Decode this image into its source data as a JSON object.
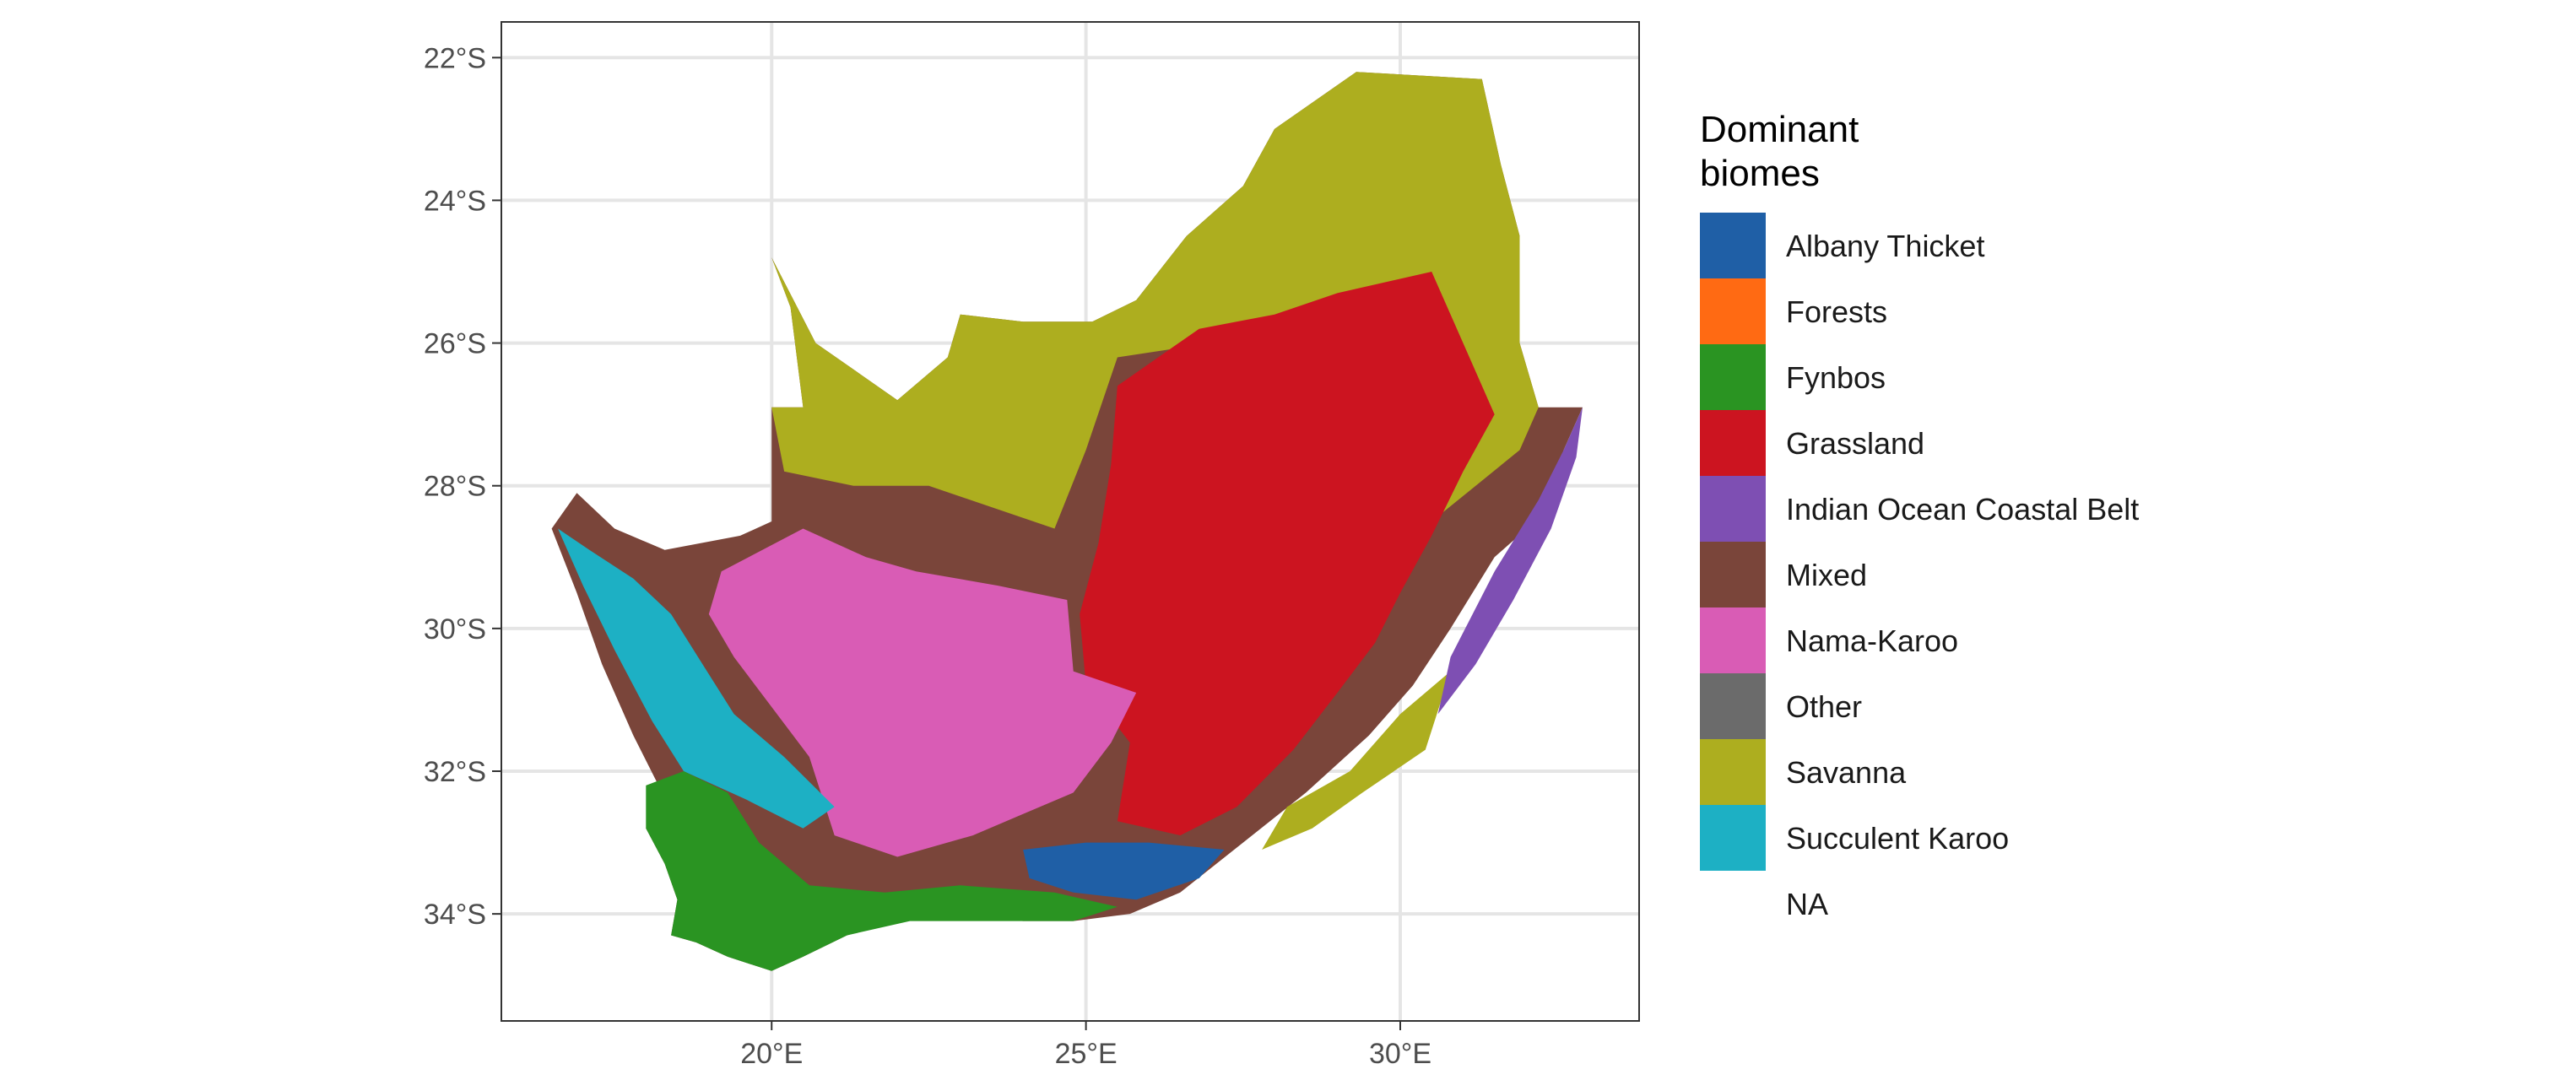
{
  "map": {
    "x_ticks": [
      {
        "lon": 20,
        "label": "20°E"
      },
      {
        "lon": 25,
        "label": "25°E"
      },
      {
        "lon": 30,
        "label": "30°E"
      }
    ],
    "y_ticks": [
      {
        "lat": -22,
        "label": "22°S"
      },
      {
        "lat": -24,
        "label": "24°S"
      },
      {
        "lat": -26,
        "label": "26°S"
      },
      {
        "lat": -28,
        "label": "28°S"
      },
      {
        "lat": -30,
        "label": "30°S"
      },
      {
        "lat": -32,
        "label": "32°S"
      },
      {
        "lat": -34,
        "label": "34°S"
      }
    ],
    "xlim": [
      15.7,
      33.8
    ],
    "ylim": [
      -35.5,
      -21.5
    ],
    "grid": true
  },
  "legend": {
    "title_line1": "Dominant",
    "title_line2": "biomes",
    "items": [
      {
        "label": "Albany Thicket",
        "color": "#1f5fa6"
      },
      {
        "label": "Forests",
        "color": "#ff6a13"
      },
      {
        "label": "Fynbos",
        "color": "#2a9422"
      },
      {
        "label": "Grassland",
        "color": "#cc1420"
      },
      {
        "label": "Indian Ocean Coastal Belt",
        "color": "#7e4fb3"
      },
      {
        "label": "Mixed",
        "color": "#7a453a"
      },
      {
        "label": "Nama-Karoo",
        "color": "#d95cb5"
      },
      {
        "label": "Other",
        "color": "#6b6b6b"
      },
      {
        "label": "Savanna",
        "color": "#adae1f"
      },
      {
        "label": "Succulent Karoo",
        "color": "#1db0c4"
      },
      {
        "label": "NA",
        "color": "none"
      }
    ]
  },
  "regions": [
    {
      "biome": "Mixed",
      "points": [
        [
          16.5,
          -28.6
        ],
        [
          16.9,
          -28.1
        ],
        [
          17.5,
          -28.6
        ],
        [
          18.3,
          -28.9
        ],
        [
          19.5,
          -28.7
        ],
        [
          20.0,
          -28.5
        ],
        [
          20.0,
          -26.9
        ],
        [
          20.5,
          -26.9
        ],
        [
          20.3,
          -25.5
        ],
        [
          20.0,
          -24.8
        ],
        [
          20.7,
          -26.0
        ],
        [
          22.0,
          -26.8
        ],
        [
          22.8,
          -26.2
        ],
        [
          23.0,
          -25.6
        ],
        [
          24.0,
          -25.7
        ],
        [
          25.1,
          -25.7
        ],
        [
          25.8,
          -25.4
        ],
        [
          26.6,
          -24.5
        ],
        [
          27.5,
          -23.8
        ],
        [
          28.0,
          -23.0
        ],
        [
          29.3,
          -22.2
        ],
        [
          31.3,
          -22.3
        ],
        [
          31.6,
          -23.5
        ],
        [
          31.9,
          -24.5
        ],
        [
          31.9,
          -26.0
        ],
        [
          32.2,
          -26.9
        ],
        [
          32.9,
          -26.9
        ],
        [
          32.6,
          -27.5
        ],
        [
          32.4,
          -28.3
        ],
        [
          31.5,
          -29.0
        ],
        [
          30.8,
          -30.0
        ],
        [
          30.2,
          -30.8
        ],
        [
          29.5,
          -31.5
        ],
        [
          28.5,
          -32.3
        ],
        [
          27.5,
          -33.0
        ],
        [
          26.5,
          -33.7
        ],
        [
          25.7,
          -34.0
        ],
        [
          24.8,
          -34.1
        ],
        [
          24.0,
          -34.1
        ],
        [
          23.0,
          -34.0
        ],
        [
          22.0,
          -34.1
        ],
        [
          21.2,
          -34.3
        ],
        [
          20.5,
          -34.6
        ],
        [
          20.0,
          -34.8
        ],
        [
          19.3,
          -34.6
        ],
        [
          18.8,
          -34.4
        ],
        [
          18.4,
          -34.3
        ],
        [
          18.5,
          -33.8
        ],
        [
          18.3,
          -33.3
        ],
        [
          18.0,
          -32.8
        ],
        [
          18.2,
          -32.2
        ],
        [
          17.8,
          -31.5
        ],
        [
          17.3,
          -30.5
        ],
        [
          16.9,
          -29.5
        ]
      ]
    },
    {
      "biome": "Savanna",
      "points": [
        [
          20.0,
          -26.9
        ],
        [
          20.5,
          -26.9
        ],
        [
          20.3,
          -25.5
        ],
        [
          20.0,
          -24.8
        ],
        [
          20.7,
          -26.0
        ],
        [
          22.0,
          -26.8
        ],
        [
          22.8,
          -26.2
        ],
        [
          23.0,
          -25.6
        ],
        [
          24.0,
          -25.7
        ],
        [
          25.1,
          -25.7
        ],
        [
          25.8,
          -25.4
        ],
        [
          26.6,
          -24.5
        ],
        [
          27.5,
          -23.8
        ],
        [
          28.0,
          -23.0
        ],
        [
          29.3,
          -22.2
        ],
        [
          31.3,
          -22.3
        ],
        [
          31.6,
          -23.5
        ],
        [
          31.9,
          -24.5
        ],
        [
          31.9,
          -26.0
        ],
        [
          32.2,
          -26.9
        ],
        [
          31.9,
          -27.5
        ],
        [
          31.2,
          -28.0
        ],
        [
          30.5,
          -28.5
        ],
        [
          30.0,
          -27.0
        ],
        [
          29.0,
          -25.5
        ],
        [
          27.0,
          -26.0
        ],
        [
          25.5,
          -26.2
        ],
        [
          25.0,
          -27.5
        ],
        [
          24.5,
          -28.6
        ],
        [
          23.5,
          -28.3
        ],
        [
          22.5,
          -28.0
        ],
        [
          21.3,
          -28.0
        ],
        [
          20.2,
          -27.8
        ]
      ]
    },
    {
      "biome": "Savanna",
      "points": [
        [
          30.0,
          -31.2
        ],
        [
          30.8,
          -30.6
        ],
        [
          30.4,
          -31.7
        ],
        [
          29.4,
          -32.3
        ],
        [
          28.6,
          -32.8
        ],
        [
          27.8,
          -33.1
        ],
        [
          28.2,
          -32.5
        ],
        [
          29.2,
          -32.0
        ]
      ]
    },
    {
      "biome": "Grassland",
      "points": [
        [
          25.5,
          -26.6
        ],
        [
          26.8,
          -25.8
        ],
        [
          28.0,
          -25.6
        ],
        [
          29.0,
          -25.3
        ],
        [
          30.5,
          -25.0
        ],
        [
          31.0,
          -26.0
        ],
        [
          31.5,
          -27.0
        ],
        [
          31.0,
          -27.8
        ],
        [
          30.5,
          -28.7
        ],
        [
          30.0,
          -29.5
        ],
        [
          29.6,
          -30.2
        ],
        [
          29.0,
          -30.9
        ],
        [
          28.3,
          -31.7
        ],
        [
          27.4,
          -32.5
        ],
        [
          26.5,
          -32.9
        ],
        [
          25.5,
          -32.7
        ],
        [
          25.7,
          -31.6
        ],
        [
          25.0,
          -30.8
        ],
        [
          24.9,
          -29.8
        ],
        [
          25.2,
          -28.8
        ],
        [
          25.4,
          -27.7
        ]
      ]
    },
    {
      "biome": "Indian Ocean Coastal Belt",
      "points": [
        [
          32.6,
          -27.5
        ],
        [
          32.9,
          -26.9
        ],
        [
          32.8,
          -27.6
        ],
        [
          32.4,
          -28.6
        ],
        [
          31.8,
          -29.6
        ],
        [
          31.2,
          -30.5
        ],
        [
          30.6,
          -31.2
        ],
        [
          30.8,
          -30.4
        ],
        [
          31.5,
          -29.2
        ],
        [
          32.2,
          -28.2
        ]
      ]
    },
    {
      "biome": "Nama-Karoo",
      "points": [
        [
          19.2,
          -29.2
        ],
        [
          20.5,
          -28.6
        ],
        [
          21.5,
          -29.0
        ],
        [
          22.3,
          -29.2
        ],
        [
          23.6,
          -29.4
        ],
        [
          24.7,
          -29.6
        ],
        [
          24.8,
          -30.6
        ],
        [
          25.8,
          -30.9
        ],
        [
          25.4,
          -31.6
        ],
        [
          24.8,
          -32.3
        ],
        [
          24.0,
          -32.6
        ],
        [
          23.2,
          -32.9
        ],
        [
          22.0,
          -33.2
        ],
        [
          21.0,
          -32.9
        ],
        [
          20.6,
          -31.8
        ],
        [
          20.0,
          -31.1
        ],
        [
          19.4,
          -30.4
        ],
        [
          19.0,
          -29.8
        ]
      ]
    },
    {
      "biome": "Succulent Karoo",
      "points": [
        [
          16.6,
          -28.6
        ],
        [
          17.1,
          -28.9
        ],
        [
          17.8,
          -29.3
        ],
        [
          18.4,
          -29.8
        ],
        [
          18.9,
          -30.5
        ],
        [
          19.4,
          -31.2
        ],
        [
          20.2,
          -31.8
        ],
        [
          21.0,
          -32.5
        ],
        [
          20.5,
          -32.8
        ],
        [
          19.6,
          -32.4
        ],
        [
          18.6,
          -32.0
        ],
        [
          18.1,
          -31.3
        ],
        [
          17.5,
          -30.3
        ],
        [
          17.0,
          -29.4
        ]
      ]
    },
    {
      "biome": "Fynbos",
      "points": [
        [
          18.0,
          -32.2
        ],
        [
          18.6,
          -32.0
        ],
        [
          19.3,
          -32.3
        ],
        [
          19.8,
          -33.0
        ],
        [
          20.6,
          -33.6
        ],
        [
          21.8,
          -33.7
        ],
        [
          23.0,
          -33.6
        ],
        [
          24.5,
          -33.7
        ],
        [
          25.5,
          -33.9
        ],
        [
          24.8,
          -34.1
        ],
        [
          23.5,
          -34.1
        ],
        [
          22.2,
          -34.1
        ],
        [
          21.2,
          -34.3
        ],
        [
          20.5,
          -34.6
        ],
        [
          20.0,
          -34.8
        ],
        [
          19.3,
          -34.6
        ],
        [
          18.8,
          -34.4
        ],
        [
          18.4,
          -34.3
        ],
        [
          18.5,
          -33.8
        ],
        [
          18.3,
          -33.3
        ],
        [
          18.0,
          -32.8
        ]
      ]
    },
    {
      "biome": "Albany Thicket",
      "points": [
        [
          24.0,
          -33.1
        ],
        [
          25.0,
          -33.0
        ],
        [
          26.0,
          -33.0
        ],
        [
          27.2,
          -33.1
        ],
        [
          26.8,
          -33.5
        ],
        [
          25.8,
          -33.8
        ],
        [
          24.8,
          -33.7
        ],
        [
          24.1,
          -33.5
        ]
      ]
    }
  ]
}
